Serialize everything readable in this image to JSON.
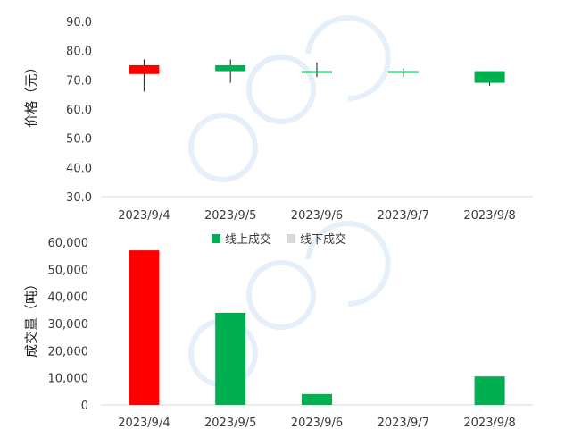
{
  "colors": {
    "up": "#FF0000",
    "down": "#00B050",
    "offline": "#D9D9D9",
    "wick": "#1a1a1a",
    "axis": "#d9d9d9",
    "watermark": "#d4e6f6"
  },
  "chart_data": [
    {
      "type": "candlestick",
      "ylabel": "价格（元）",
      "ylim": [
        30,
        90
      ],
      "yticks": [
        "90.0",
        "80.0",
        "70.0",
        "60.0",
        "50.0",
        "40.0",
        "30.0"
      ],
      "ytick_values": [
        90,
        80,
        70,
        60,
        50,
        40,
        30
      ],
      "categories": [
        "2023/9/4",
        "2023/9/5",
        "2023/9/6",
        "2023/9/7",
        "2023/9/8"
      ],
      "candles": [
        {
          "open": 72.0,
          "close": 75.0,
          "low": 66.0,
          "high": 77.0
        },
        {
          "open": 75.0,
          "close": 73.0,
          "low": 69.0,
          "high": 77.0
        },
        {
          "open": 73.0,
          "close": 72.5,
          "low": 71.0,
          "high": 76.0
        },
        {
          "open": 73.0,
          "close": 72.5,
          "low": 71.0,
          "high": 74.0
        },
        {
          "open": 73.0,
          "close": 69.0,
          "low": 68.0,
          "high": 73.0
        }
      ]
    },
    {
      "type": "bar",
      "ylabel": "成交量（吨）",
      "ylim": [
        0,
        60000
      ],
      "yticks": [
        "60,000",
        "50,000",
        "40,000",
        "30,000",
        "20,000",
        "10,000",
        "0"
      ],
      "ytick_values": [
        60000,
        50000,
        40000,
        30000,
        20000,
        10000,
        0
      ],
      "categories": [
        "2023/9/4",
        "2023/9/5",
        "2023/9/6",
        "2023/9/7",
        "2023/9/8"
      ],
      "series": [
        {
          "name": "线上成交",
          "values": [
            57000,
            34000,
            4000,
            0,
            10500
          ]
        },
        {
          "name": "线下成交",
          "values": [
            0,
            0,
            0,
            0,
            0
          ]
        }
      ],
      "bar_colors": [
        "#FF0000",
        "#00B050",
        "#00B050",
        "#00B050",
        "#00B050"
      ],
      "legend": {
        "position": "top"
      }
    }
  ]
}
